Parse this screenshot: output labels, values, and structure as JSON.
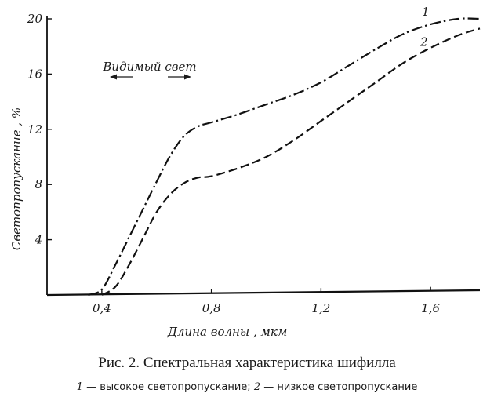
{
  "chart_data": {
    "type": "line",
    "title": "",
    "xlabel": "Длина волны , мкм",
    "ylabel": "Светопропускание , %",
    "xlim": [
      0.2,
      1.78
    ],
    "ylim": [
      0,
      20
    ],
    "xticks": [
      0.4,
      0.8,
      1.2,
      1.6
    ],
    "xtick_labels": [
      "0,4",
      "0,8",
      "1,2",
      "1,6"
    ],
    "yticks": [
      4,
      8,
      12,
      16,
      20
    ],
    "ytick_labels": [
      "4",
      "8",
      "12",
      "16",
      "20"
    ],
    "grid": false,
    "annotation": "Видимый свет",
    "series": [
      {
        "name": "1",
        "line_style": "dash-dot",
        "x": [
          0.35,
          0.4,
          0.45,
          0.5,
          0.55,
          0.6,
          0.65,
          0.7,
          0.75,
          0.8,
          0.9,
          1.0,
          1.1,
          1.2,
          1.3,
          1.4,
          1.5,
          1.6,
          1.7,
          1.78
        ],
        "y": [
          0,
          0.4,
          2.2,
          4.2,
          6.2,
          8.2,
          10.1,
          11.5,
          12.2,
          12.5,
          13.1,
          13.8,
          14.5,
          15.4,
          16.6,
          17.8,
          18.9,
          19.6,
          20.0,
          20.0
        ]
      },
      {
        "name": "2",
        "line_style": "dashed",
        "x": [
          0.4,
          0.45,
          0.5,
          0.55,
          0.6,
          0.65,
          0.7,
          0.75,
          0.8,
          0.9,
          1.0,
          1.1,
          1.2,
          1.3,
          1.4,
          1.5,
          1.6,
          1.7,
          1.78
        ],
        "y": [
          0,
          0.6,
          2.2,
          4.1,
          6.0,
          7.3,
          8.1,
          8.5,
          8.6,
          9.2,
          10.0,
          11.2,
          12.6,
          14.0,
          15.4,
          16.8,
          17.9,
          18.8,
          19.3
        ]
      }
    ]
  },
  "caption": {
    "title": "Рис. 2. Спектральная характеристика шифилла",
    "legend_1_num": "1",
    "legend_1_text": " — высокое светопропускание; ",
    "legend_2_num": "2",
    "legend_2_text": " — низкое светопропускание"
  }
}
